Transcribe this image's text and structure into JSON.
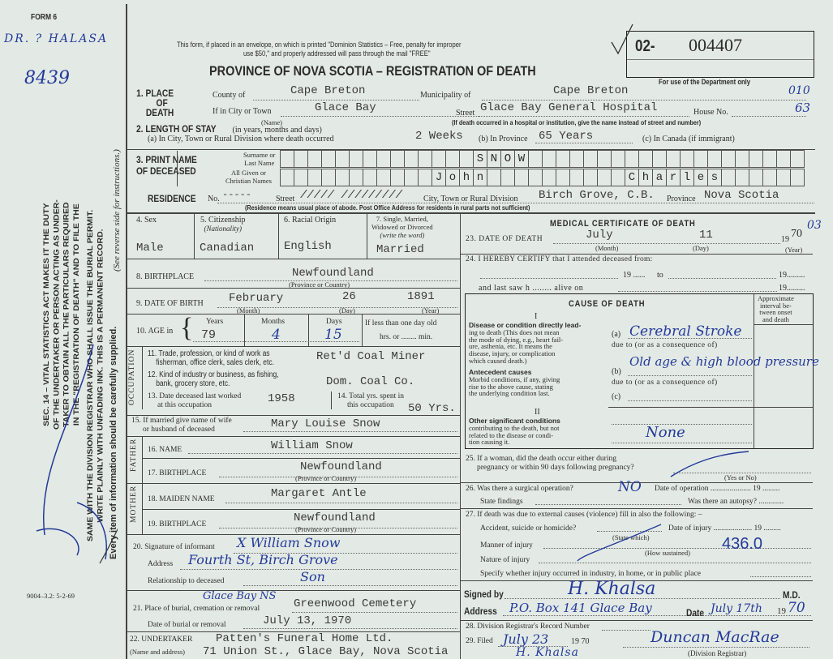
{
  "side": {
    "form_no": "FORM 6",
    "hand_note": "DR. ? HALASA",
    "hand_number": "8439",
    "instructions": [
      "SEC. 14 – VITAL STATISTICS ACT MAKES IT THE DUTY",
      "OF THE UNDERTAKER OR PERSON ACTING AS UNDER-",
      "TAKER TO OBTAIN ALL THE PARTICULARS REQUIRED",
      "IN THE \"REGISTRATION OF DEATH\" AND TO FILE THE",
      "SAME WITH THE DIVISION REGISTRAR WHO SHALL ISSUE THE BURIAL PERMIT.",
      "WRITE PLAINLY WITH UNFADING INK. THIS IS A PERMANENT RECORD."
    ],
    "every_item": "Every item of information should be carefully supplied.",
    "see_reverse": "(See reverse side for instructions.)",
    "print_code": "9004–3.2: 5-2-69"
  },
  "header": {
    "mail_note_1": "This form, if placed in an envelope, on which is printed \"Dominion Statistics – Free, penalty for improper",
    "mail_note_2": "use $50,\" and properly addressed will pass through the mail \"FREE\"",
    "title": "PROVINCE OF NOVA SCOTIA – REGISTRATION OF DEATH",
    "reg_prefix": "02-",
    "reg_number": "004407",
    "dept_only": "For use of the Department only"
  },
  "place": {
    "label_1": "1. PLACE",
    "label_2": "OF",
    "label_3": "DEATH",
    "county_label": "County of",
    "county": "Cape Breton",
    "municipality_label": "Municipality of",
    "municipality": "Cape Breton",
    "muni_code": "010",
    "city_label": "If in City or Town",
    "city": "Glace Bay",
    "name_note": "(Name)",
    "street_label": "Street",
    "street": "Glace Bay General Hospital",
    "house_label": "House No.",
    "house": "63",
    "hospital_note": "(If death occurred in a hospital or institution, give the name instead of street and number)"
  },
  "stay": {
    "label": "2. LENGTH OF STAY",
    "label_note": "(in years, months and days)",
    "a_label": "(a) In City, Town or Rural Division where death occurred",
    "a": "2 Weeks",
    "b_label": "(b) In Province",
    "b": "65 Years",
    "c_label": "(c) In Canada (if immigrant)"
  },
  "name": {
    "label_1": "3. PRINT NAME",
    "label_2": "OF DECEASED",
    "surname_label_1": "Surname or",
    "surname_label_2": "Last Name",
    "given_label_1": "All Given or",
    "given_label_2": "Christian Names",
    "surname_cells": [
      "",
      "",
      "",
      "",
      "",
      "",
      "",
      "",
      "",
      "",
      "",
      "",
      "",
      "",
      "S",
      "N",
      "O",
      "W",
      "",
      "",
      "",
      "",
      "",
      "",
      "",
      "",
      "",
      "",
      "",
      "",
      "",
      "",
      "",
      "",
      "",
      "",
      "",
      ""
    ],
    "given_cells": [
      "",
      "",
      "",
      "",
      "",
      "",
      "",
      "",
      "",
      "",
      "",
      "J",
      "o",
      "h",
      "n",
      "",
      "",
      "",
      "",
      "",
      "",
      "",
      "",
      "",
      "",
      "C",
      "h",
      "a",
      "r",
      "l",
      "e",
      "s",
      "",
      "",
      "",
      "",
      "",
      ""
    ]
  },
  "residence": {
    "label": "RESIDENCE",
    "no_label": "No.",
    "no": "-----",
    "street_label": "Street",
    "street": "///// /////////",
    "city_label": "City, Town or Rural Division",
    "city": "Birch Grove, C.B.",
    "province_label": "Province",
    "province": "Nova Scotia",
    "note": "(Residence means usual place of abode. Post Office Address for residents in rural parts not sufficient)"
  },
  "personal": {
    "sex_label": "4. Sex",
    "sex": "Male",
    "citizenship_label": "5. Citizenship",
    "citizenship_note": "(Nationality)",
    "citizenship": "Canadian",
    "racial_label": "6. Racial Origin",
    "racial": "English",
    "marital_label_1": "7. Single, Married,",
    "marital_label_2": "Widowed or Divorced",
    "marital_label_3": "(write the word)",
    "marital": "Married",
    "birthplace_label": "8. BIRTHPLACE",
    "birthplace": "Newfoundland",
    "prov_note": "(Province or Country)",
    "dob_label": "9. DATE OF BIRTH",
    "dob_month": "February",
    "dob_day": "26",
    "dob_year": "1891",
    "month_note": "(Month)",
    "day_note": "(Day)",
    "year_note": "(Year)",
    "age_label": "10. AGE in",
    "years_label": "Years",
    "years": "79",
    "months_label": "Months",
    "months": "4",
    "days_label": "Days",
    "days": "15",
    "lessday_1": "If less than one day old",
    "lessday_2": "hrs. or ........ min."
  },
  "occupation": {
    "side_label": "OCCUPATION",
    "trade_label_1": "11. Trade, profession, or kind of work as",
    "trade_label_2": "fisherman, office clerk, sales clerk, etc.",
    "trade": "Ret'd Coal Miner",
    "industry_label_1": "12. Kind of industry or business, as fishing,",
    "industry_label_2": "bank, grocery store, etc.",
    "industry": "Dom. Coal Co.",
    "last_worked_label_1": "13. Date deceased last worked",
    "last_worked_label_2": "at this occupation",
    "last_worked": "1958",
    "total_label_1": "14. Total yrs. spent in",
    "total_label_2": "this occupation",
    "total": "50 Yrs."
  },
  "family": {
    "spouse_label_1": "15. If married give name of wife",
    "spouse_label_2": "or husband of deceased",
    "spouse": "Mary Louise Snow",
    "father_side": "FATHER",
    "father_name_label": "16. NAME",
    "father_name": "William Snow",
    "father_bp_label": "17. BIRTHPLACE",
    "father_bp": "Newfoundland",
    "mother_side": "MOTHER",
    "mother_name_label": "18. MAIDEN NAME",
    "mother_name": "Margaret Antle",
    "mother_bp_label": "19. BIRTHPLACE",
    "mother_bp": "Newfoundland"
  },
  "informant": {
    "sig_label": "20. Signature of informant",
    "signature": "X William Snow",
    "address_label": "Address",
    "address": "Fourth St, Birch Grove",
    "relation_label": "Relationship to deceased",
    "relation": "Son"
  },
  "burial": {
    "place_label": "21. Place of burial, cremation or removal",
    "place_hand": "Glace Bay NS",
    "place": "Greenwood Cemetery",
    "date_label": "Date of burial or removal",
    "date": "July 13, 1970",
    "undertaker_label": "22. UNDERTAKER",
    "undertaker": "Patten's Funeral Home Ltd.",
    "undertaker_addr": "71 Union St., Glace Bay, Nova Scotia",
    "name_addr_note": "(Name and address)"
  },
  "medical": {
    "title": "MEDICAL CERTIFICATE OF DEATH",
    "dod_label": "23. DATE OF DEATH",
    "dod_month": "July",
    "dod_day": "11",
    "dod_year_prefix": "19",
    "dod_year": "70",
    "dod_hand": "03",
    "certify_label": "24. I HEREBY CERTIFY that I attended deceased from:",
    "from_19": "19 ......",
    "to_label": "to",
    "to_19": "19.........",
    "last_saw": "and last saw h ........ alive on",
    "last_19": "19.........",
    "cause_title": "CAUSE OF DEATH",
    "interval_1": "Approximate",
    "interval_2": "interval be-",
    "interval_3": "tween onset",
    "interval_4": "and death",
    "part_1": "I",
    "direct_1": "Disease or condition directly lead-",
    "direct_2": "ing to death (This does not mean",
    "direct_3": "the mode of dying, e.g., heart fail-",
    "direct_4": "ure, asthenia, etc. It means the",
    "direct_5": "disease, injury, or complication",
    "direct_6": "which caused death.)",
    "a_label": "(a)",
    "a": "Cerebral Stroke",
    "due_to_1": "due to (or as a consequence of)",
    "antecedent_1": "Antecedent causes",
    "antecedent_2": "Morbid conditions, if any, giving",
    "antecedent_3": "rise to the above cause, stating",
    "antecedent_4": "the underlying condition last.",
    "b_label": "(b)",
    "b": "Old age & high blood pressure",
    "due_to_2": "due to (or as a consequence of)",
    "c_label": "(c)",
    "part_2": "II",
    "other_1": "Other significant conditions",
    "other_2": "contributing to the death, but not",
    "other_3": "related to the disease or condi-",
    "other_4": "tion causing it.",
    "other": "None",
    "q25_1": "25. If a woman, did the death occur either during",
    "q25_2": "pregnancy or within 90 days following pregnancy?",
    "yes_no": "(Yes or No)",
    "q26": "26. Was there a surgical operation?",
    "q26_answer": "NO",
    "op_date": "Date of operation ..................... 19 .........",
    "findings": "State findings",
    "autopsy": "Was there an autopsy? .............",
    "q27": "27. If death was due to external causes (violence) fill in also the following: –",
    "accident": "Accident, suicide or homicide?",
    "state_which": "(State which)",
    "injury_date": "Date of injury .................... 19 .........",
    "manner": "Manner of injury",
    "how": "(How sustained)",
    "code": "436.0",
    "nature": "Nature of injury",
    "specify": "Specify whether injury occurred in industry, in home, or in public place",
    "signed_label": "Signed by",
    "signed": "H. Khalsa",
    "md": "M.D.",
    "address_label": "Address",
    "address": "P.O. Box 141 Glace Bay",
    "date_label": "Date",
    "date": "July 17th",
    "date_year_prefix": "19",
    "date_year": "70",
    "q28": "28. Division Registrar's Record Number",
    "q29": "29. Filed",
    "filed": "July 23",
    "filed_year": "19 70",
    "filed_by": "H. Khalsa",
    "registrar": "Duncan MacRae",
    "registrar_label": "(Division Registrar)"
  }
}
